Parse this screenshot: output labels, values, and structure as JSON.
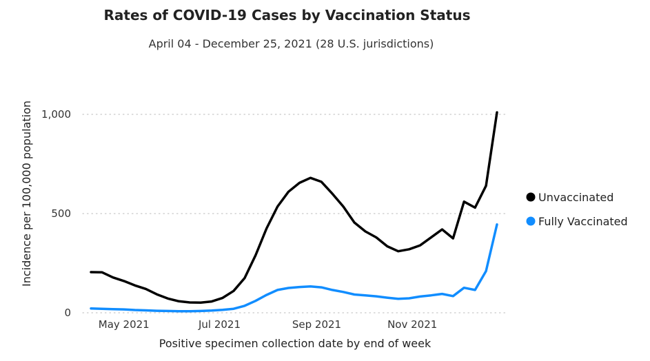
{
  "chart_data": {
    "type": "line",
    "title": "Rates of COVID-19 Cases by Vaccination Status",
    "subtitle": "April 04 - December 25, 2021 (28 U.S. jurisdictions)",
    "xlabel": "Positive specimen collection date by end of week",
    "ylabel": "Incidence per 100,000 population",
    "ylim": [
      0,
      1050
    ],
    "yticks": [
      0,
      500,
      1000
    ],
    "ytick_labels": [
      "0",
      "500",
      "1,000"
    ],
    "xtick_labels": [
      {
        "date": "2021-05-01",
        "label": "May 2021"
      },
      {
        "date": "2021-07-01",
        "label": "Jul 2021"
      },
      {
        "date": "2021-09-01",
        "label": "Sep 2021"
      },
      {
        "date": "2021-11-01",
        "label": "Nov 2021"
      }
    ],
    "grid": "horizontal dotted",
    "legend_position": "right",
    "x": [
      "2021-04-10",
      "2021-04-17",
      "2021-04-24",
      "2021-05-01",
      "2021-05-08",
      "2021-05-15",
      "2021-05-22",
      "2021-05-29",
      "2021-06-05",
      "2021-06-12",
      "2021-06-19",
      "2021-06-26",
      "2021-07-03",
      "2021-07-10",
      "2021-07-17",
      "2021-07-24",
      "2021-07-31",
      "2021-08-07",
      "2021-08-14",
      "2021-08-21",
      "2021-08-28",
      "2021-09-04",
      "2021-09-11",
      "2021-09-18",
      "2021-09-25",
      "2021-10-02",
      "2021-10-09",
      "2021-10-16",
      "2021-10-23",
      "2021-10-30",
      "2021-11-06",
      "2021-11-13",
      "2021-11-20",
      "2021-11-27",
      "2021-12-04",
      "2021-12-11",
      "2021-12-18",
      "2021-12-25"
    ],
    "series": [
      {
        "name": "Unvaccinated",
        "color": "#000000",
        "values": [
          205,
          204,
          178,
          160,
          138,
          120,
          93,
          72,
          58,
          52,
          51,
          57,
          75,
          110,
          175,
          290,
          425,
          535,
          610,
          655,
          680,
          660,
          600,
          535,
          455,
          410,
          380,
          335,
          310,
          320,
          340,
          380,
          420,
          375,
          560,
          530,
          640,
          1010
        ]
      },
      {
        "name": "Fully Vaccinated",
        "color": "#118DFF",
        "values": [
          22,
          20,
          18,
          17,
          14,
          12,
          10,
          9,
          8,
          8,
          9,
          11,
          15,
          20,
          35,
          60,
          90,
          115,
          125,
          130,
          133,
          128,
          115,
          105,
          92,
          88,
          83,
          76,
          70,
          73,
          82,
          88,
          95,
          84,
          126,
          115,
          210,
          445
        ]
      }
    ]
  }
}
